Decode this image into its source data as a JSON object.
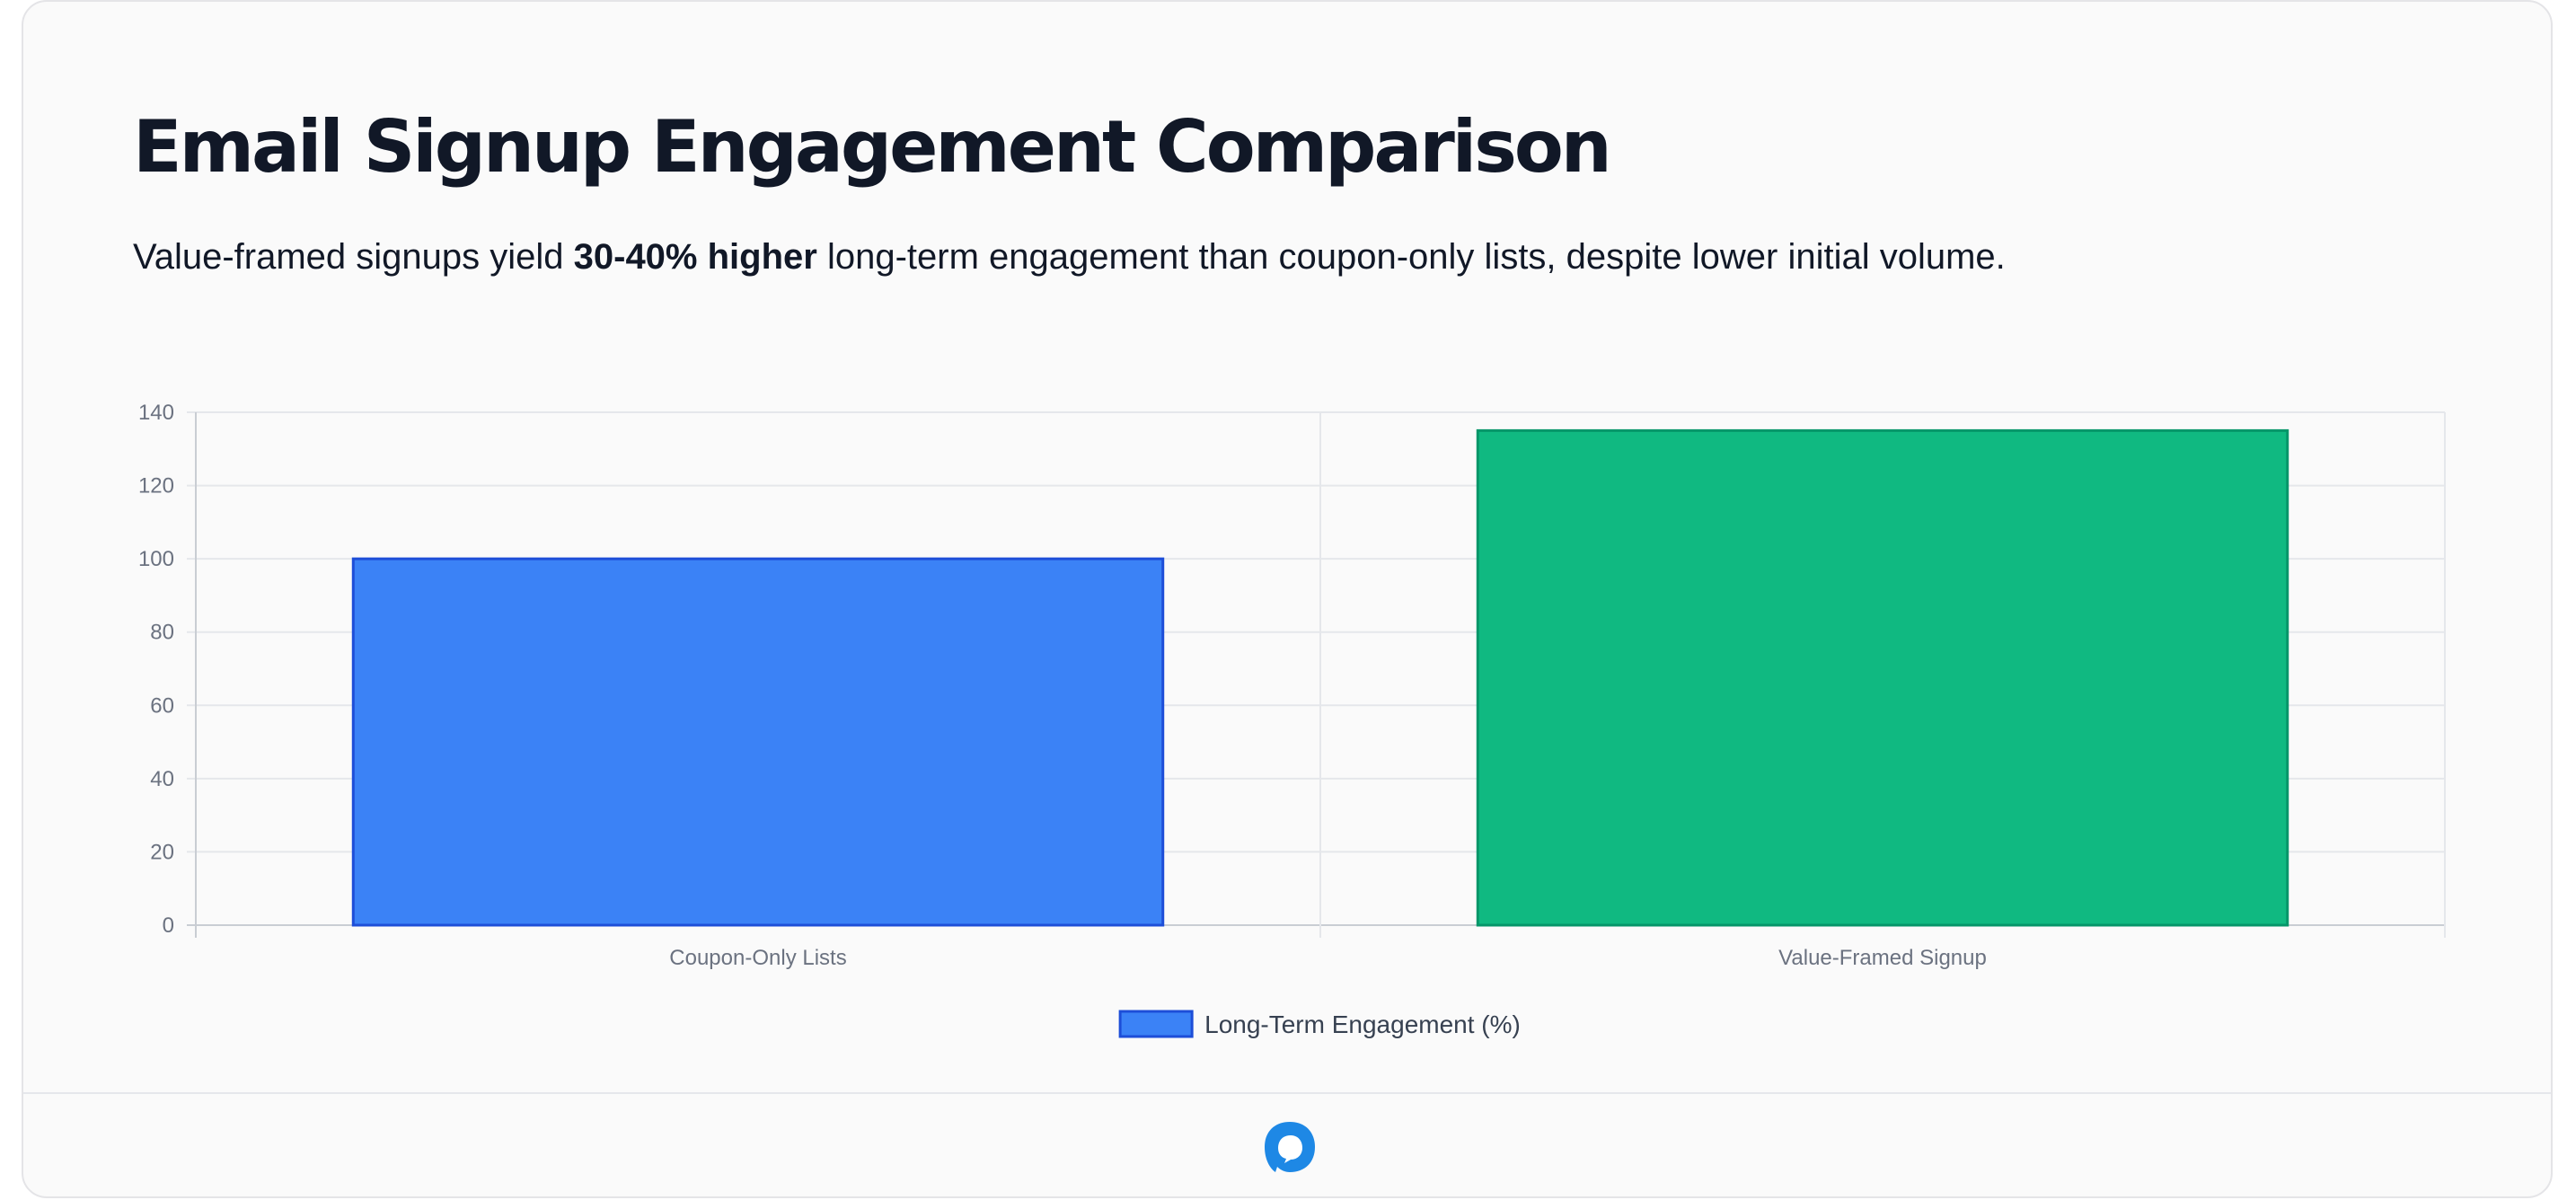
{
  "header": {
    "title": "Email Signup Engagement Comparison",
    "subtitle_before": "Value-framed signups yield ",
    "subtitle_bold": "30-40% higher",
    "subtitle_after": " long-term engagement than coupon-only lists, despite lower initial volume."
  },
  "chart_data": {
    "type": "bar",
    "categories": [
      "Coupon-Only Lists",
      "Value-Framed Signup"
    ],
    "series": [
      {
        "name": "Long-Term Engagement (%)",
        "values": [
          100,
          135
        ]
      }
    ],
    "bar_colors": [
      "#3b82f6",
      "#10b981"
    ],
    "bar_border_colors": [
      "#1d4ed8",
      "#059669"
    ],
    "ylim": [
      0,
      140
    ],
    "yticks": [
      0,
      20,
      40,
      60,
      80,
      100,
      120,
      140
    ],
    "grid": true,
    "legend_position": "bottom",
    "xlabel": "",
    "ylabel": ""
  },
  "footer": {
    "logo_icon": "chat-bubble-icon",
    "logo_color": "#1e88e5"
  }
}
